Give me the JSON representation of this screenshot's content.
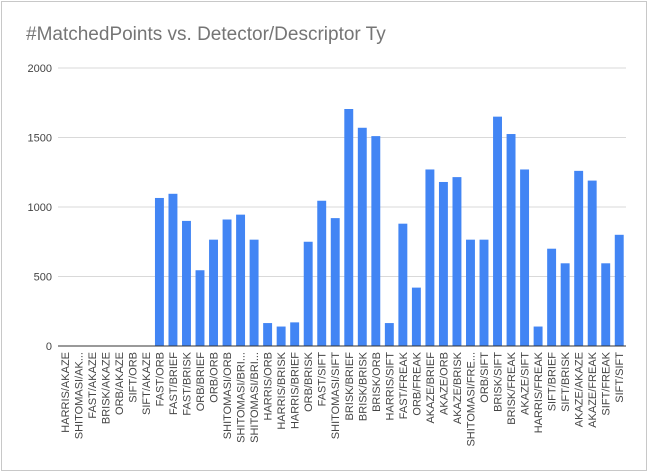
{
  "chart_data": {
    "type": "bar",
    "title": "#MatchedPoints vs. Detector/Descriptor Ty",
    "xlabel": "",
    "ylabel": "",
    "ylim": [
      0,
      2000
    ],
    "yticks": [
      "0",
      "500",
      "1000",
      "1500",
      "2000"
    ],
    "grid": true,
    "legend": "none",
    "bar_color": "#4285f4",
    "categories": [
      "HARRIS/AKAZE",
      "SHITOMASI/AK...",
      "FAST/AKAZE",
      "BRISK/AKAZE",
      "ORB/AKAZE",
      "SIFT/ORB",
      "SIFT/AKAZE",
      "FAST/ORB",
      "FAST/BRIEF",
      "FAST/BRISK",
      "ORB/BRIEF",
      "ORB/ORB",
      "SHITOMASI/ORB",
      "SHITOMASI/BRI...",
      "SHITOMASI/BRI...",
      "HARRIS/ORB",
      "HARRIS/BRISK",
      "HARRIS/BRIEF",
      "ORB/BRISK",
      "FAST/SIFT",
      "SHITOMASI/SIFT",
      "BRISK/BRIEF",
      "BRISK/BRISK",
      "BRISK/ORB",
      "HARRIS/SIFT",
      "FAST/FREAK",
      "ORB/FREAK",
      "AKAZE/BRIEF",
      "AKAZE/ORB",
      "AKAZE/BRISK",
      "SHITOMASI/FRE...",
      "ORB/SIFT",
      "BRISK/SIFT",
      "BRISK/FREAK",
      "AKAZE/SIFT",
      "HARRIS/FREAK",
      "SIFT/BRIEF",
      "SIFT/BRISK",
      "AKAZE/AKAZE",
      "AKAZE/FREAK",
      "SIFT/FREAK",
      "SIFT/SIFT"
    ],
    "values": [
      0,
      0,
      0,
      0,
      0,
      0,
      0,
      1065,
      1095,
      900,
      545,
      765,
      910,
      945,
      765,
      165,
      140,
      170,
      750,
      1045,
      920,
      1705,
      1570,
      1510,
      165,
      880,
      420,
      1270,
      1180,
      1215,
      765,
      765,
      1650,
      1525,
      1270,
      140,
      700,
      595,
      1260,
      1190,
      595,
      800
    ]
  }
}
